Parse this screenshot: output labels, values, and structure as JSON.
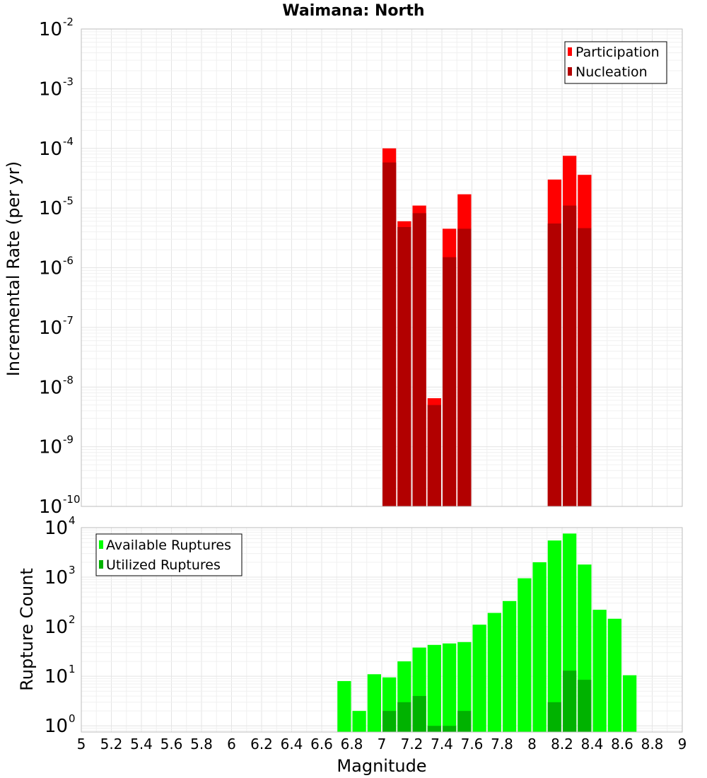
{
  "chart_data": [
    {
      "type": "bar",
      "title": "Waimana: North",
      "xlabel": "",
      "ylabel": "Incremental Rate (per yr)",
      "yscale": "log",
      "ylim": [
        1e-10,
        0.01
      ],
      "xlim": [
        5,
        9
      ],
      "bin_width": 0.1,
      "grid": true,
      "legend_position": "top-right",
      "y_tick_exponents": [
        "-10",
        "-9",
        "-8",
        "-7",
        "-6",
        "-5",
        "-4",
        "-3",
        "-2"
      ],
      "y_tick_base": "10",
      "x": [
        7.05,
        7.15,
        7.25,
        7.35,
        7.45,
        7.55,
        8.15,
        8.25,
        8.35
      ],
      "series": [
        {
          "name": "Participation",
          "color": "#ff0000",
          "values": [
            0.0001,
            6e-06,
            1.1e-05,
            6.5e-09,
            4.5e-06,
            1.7e-05,
            3e-05,
            7.5e-05,
            3.6e-05
          ]
        },
        {
          "name": "Nucleation",
          "color": "#b20000",
          "values": [
            5.8e-05,
            4.8e-06,
            8.2e-06,
            5e-09,
            1.5e-06,
            4.5e-06,
            5.5e-06,
            1.1e-05,
            4.6e-06
          ]
        }
      ]
    },
    {
      "type": "bar",
      "title": "",
      "xlabel": "Magnitude",
      "ylabel": "Rupture Count",
      "yscale": "log",
      "ylim": [
        0.75,
        10000
      ],
      "xlim": [
        5,
        9
      ],
      "bin_width": 0.1,
      "grid": true,
      "legend_position": "top-left",
      "y_tick_exponents": [
        "0",
        "1",
        "2",
        "3",
        "4"
      ],
      "y_tick_base": "10",
      "x_ticks": [
        "5",
        "5.2",
        "5.4",
        "5.6",
        "5.8",
        "6",
        "6.2",
        "6.4",
        "6.6",
        "6.8",
        "7",
        "7.2",
        "7.4",
        "7.6",
        "7.8",
        "8",
        "8.2",
        "8.4",
        "8.6",
        "8.8",
        "9"
      ],
      "x": [
        6.75,
        6.85,
        6.95,
        7.05,
        7.15,
        7.25,
        7.35,
        7.45,
        7.55,
        7.65,
        7.75,
        7.85,
        7.95,
        8.05,
        8.15,
        8.25,
        8.35,
        8.45,
        8.55,
        8.65
      ],
      "series": [
        {
          "name": "Available Ruptures",
          "color": "#00ff00",
          "values": [
            8,
            2,
            11,
            9.5,
            20,
            38,
            43,
            46,
            49,
            110,
            190,
            330,
            950,
            2000,
            5500,
            7600,
            1800,
            220,
            145,
            10.5
          ]
        },
        {
          "name": "Utilized Ruptures",
          "color": "#00b200",
          "values": [
            0,
            0,
            0,
            2,
            3,
            4,
            1,
            1,
            2,
            0,
            0,
            0,
            0,
            0,
            3,
            13,
            8.5,
            0,
            0,
            0
          ]
        }
      ]
    }
  ]
}
